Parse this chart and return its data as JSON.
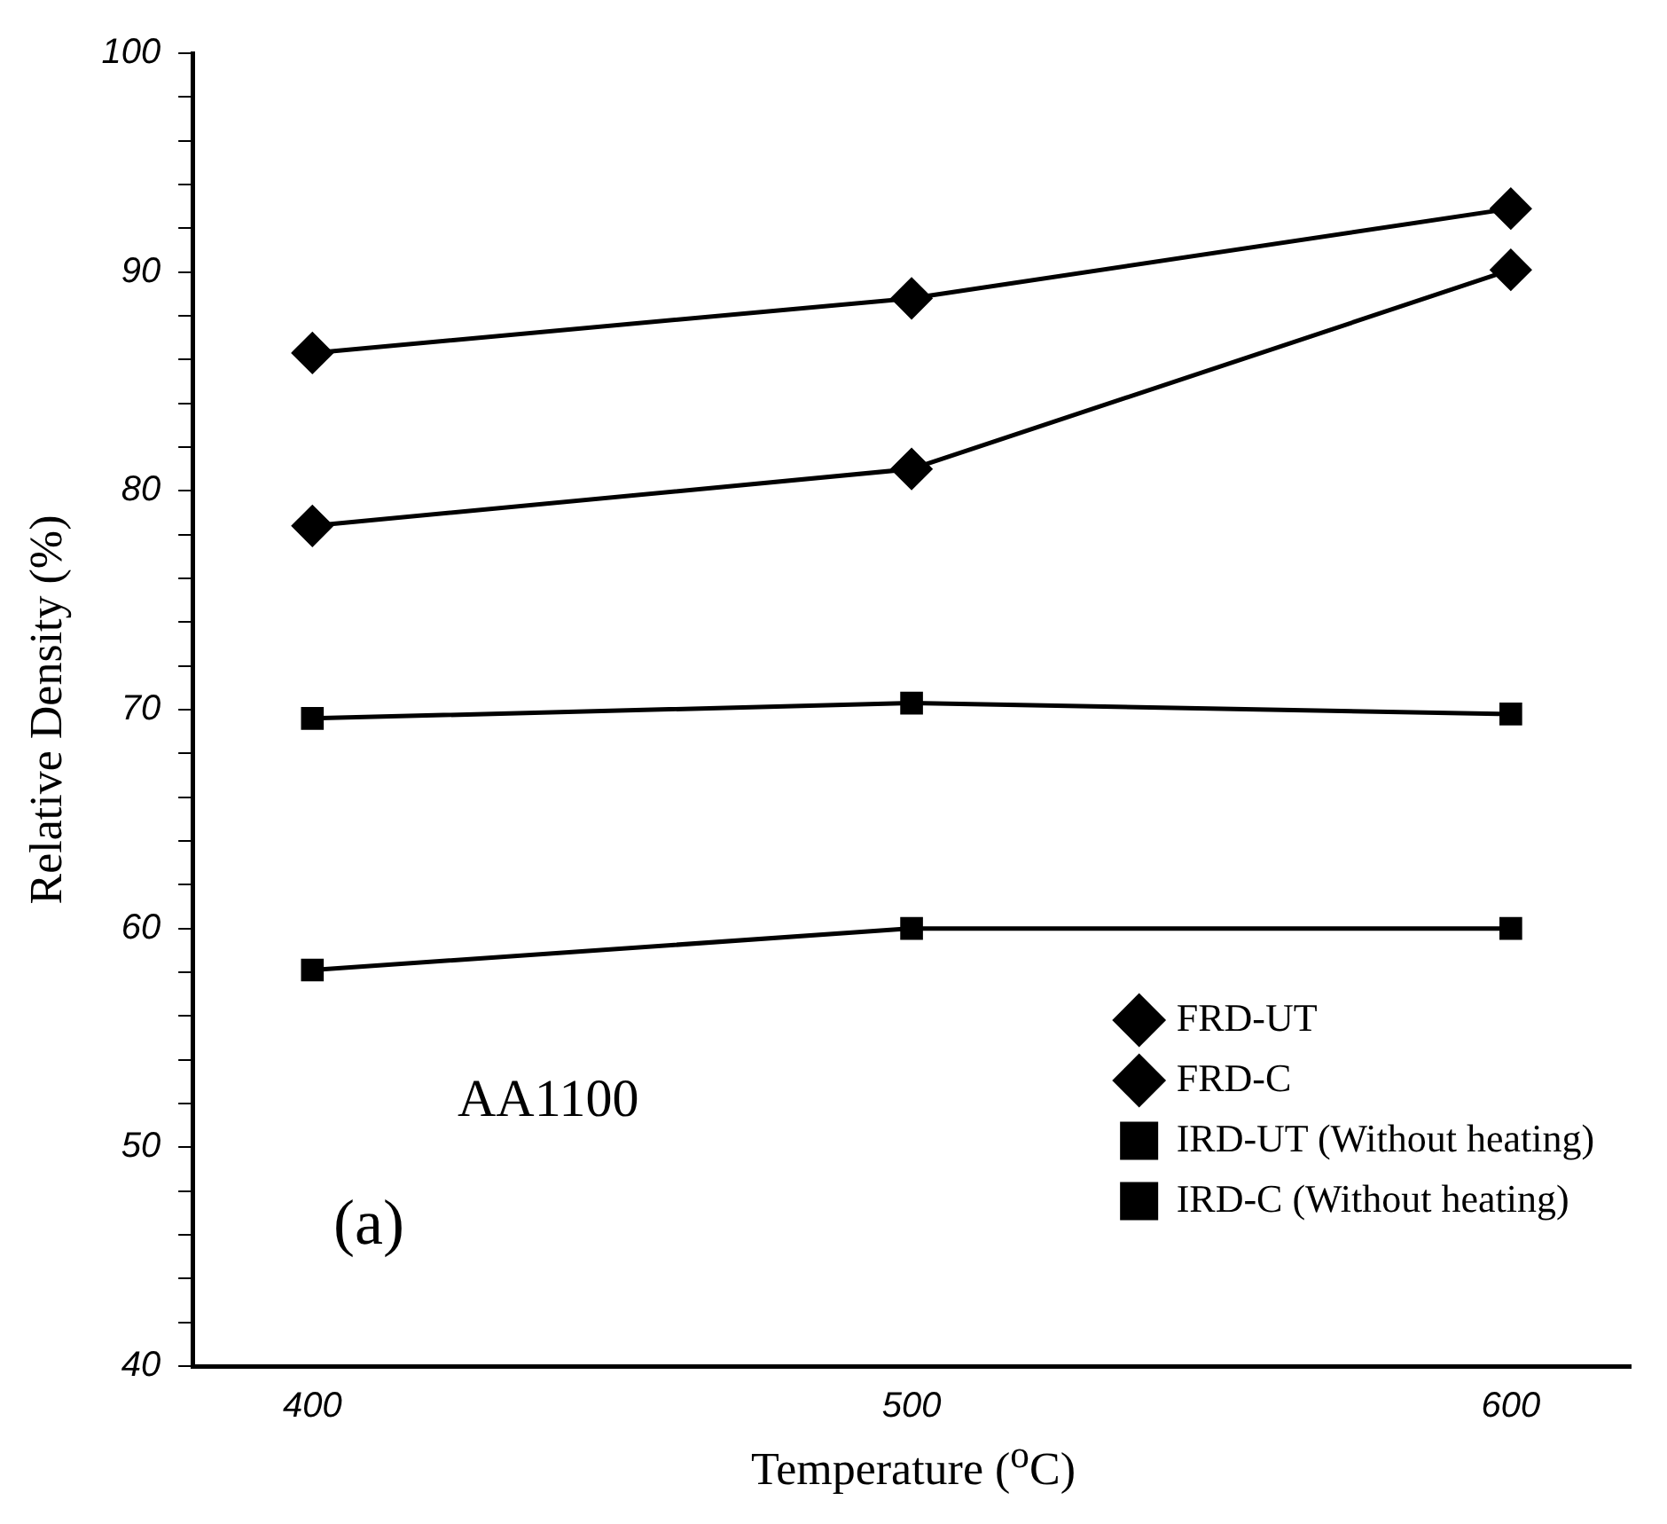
{
  "chart_data": {
    "type": "line",
    "xlabel": "Temperature ($^{o}$C)",
    "ylabel": "Relative Density (%)",
    "x": [
      400,
      500,
      600
    ],
    "xlim": [
      380,
      620
    ],
    "xticks": [
      400,
      500,
      600
    ],
    "ylim": [
      40,
      100
    ],
    "yticks": [
      40,
      {
        "value": 42,
        "label": null
      },
      {
        "value": 44,
        "label": null
      },
      {
        "value": 46,
        "label": null
      },
      {
        "value": 48,
        "label": null
      },
      50,
      {
        "value": 52,
        "label": null
      },
      {
        "value": 54,
        "label": null
      },
      {
        "value": 56,
        "label": null
      },
      {
        "value": 58,
        "label": null
      },
      60,
      {
        "value": 62,
        "label": null
      },
      {
        "value": 64,
        "label": null
      },
      {
        "value": 66,
        "label": null
      },
      {
        "value": 68,
        "label": null
      },
      70,
      {
        "value": 72,
        "label": null
      },
      {
        "value": 74,
        "label": null
      },
      {
        "value": 76,
        "label": null
      },
      {
        "value": 78,
        "label": null
      },
      80,
      {
        "value": 82,
        "label": null
      },
      {
        "value": 84,
        "label": null
      },
      {
        "value": 86,
        "label": null
      },
      {
        "value": 88,
        "label": null
      },
      90,
      {
        "value": 92,
        "label": null
      },
      {
        "value": 94,
        "label": null
      },
      {
        "value": 96,
        "label": null
      },
      {
        "value": 98,
        "label": null
      },
      100
    ],
    "grid": false,
    "legend": "bottom right",
    "line_style": "solid",
    "series": [
      {
        "name": "FRD-UT",
        "color": "#000000",
        "marker": "diamond",
        "values": [
          86.3,
          88.8,
          92.9
        ]
      },
      {
        "name": "FRD-C",
        "color": "#000000",
        "marker": "diamond",
        "values": [
          78.4,
          81,
          90.1
        ]
      },
      {
        "name": "IRD-UT (Without heating)",
        "color": "#000000",
        "marker": "square",
        "values": [
          69.6,
          70.3,
          69.8
        ]
      },
      {
        "name": "IRD-C (Without heating)",
        "color": "#000000",
        "marker": "square",
        "values": [
          58.1,
          60,
          60
        ]
      }
    ],
    "annotations": [
      "AA1100",
      "(a)"
    ]
  }
}
